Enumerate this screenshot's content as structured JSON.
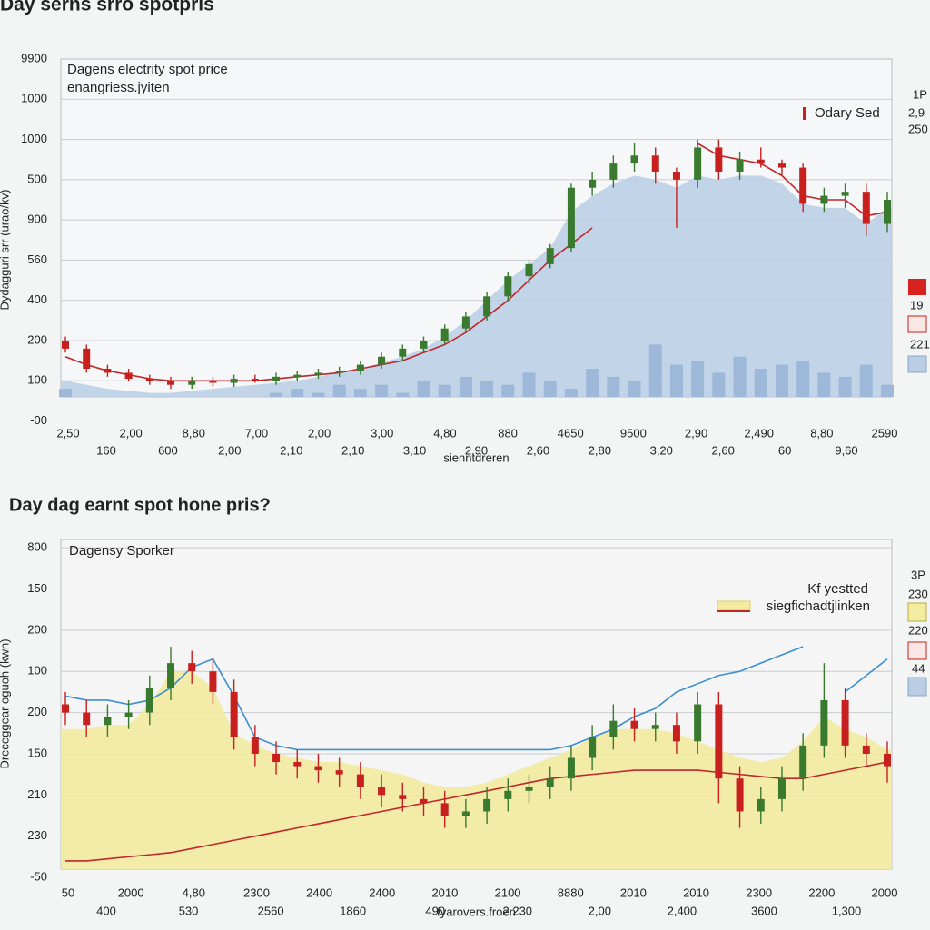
{
  "chart_data": [
    {
      "type": "candlestick",
      "title": "Day serns srro spotpris",
      "box_texts": [
        "Dagens electrity spot price",
        "enangriess.jyiten"
      ],
      "legend": [
        "Odary Sed"
      ],
      "side_labels": [
        "1P",
        "2,9",
        "250",
        "19",
        "221"
      ],
      "y_axis_title": "Dydagguri srr (urao/kv)",
      "y_labels": [
        "9900",
        "1000",
        "1000",
        "500",
        "900",
        "560",
        "400",
        "200",
        "100",
        "-00"
      ],
      "x_labels_row1": [
        "2,50",
        "2,00",
        "8,80",
        "7,00",
        "2,00",
        "3,00",
        "4,80",
        "880",
        "4650",
        "9500",
        "2,90",
        "2,490",
        "8,80",
        "2590"
      ],
      "x_labels_row2": [
        "160",
        "600",
        "2,00",
        "2,10",
        "2,10",
        "3,10",
        "2,90",
        "2,60",
        "2,80",
        "3,20",
        "2,60",
        "60",
        "9,60"
      ],
      "x_label": "sienntdreren",
      "ylim": [
        0.6,
        9.0
      ],
      "grid": true,
      "candles": {
        "up_color": "#3a7a2e",
        "down_color": "#c8201e",
        "open": [
          2.0,
          1.8,
          1.3,
          1.2,
          1.05,
          1.0,
          0.9,
          1.0,
          0.95,
          1.05,
          1.0,
          1.1,
          1.15,
          1.2,
          1.25,
          1.4,
          1.6,
          1.8,
          2.0,
          2.3,
          2.6,
          3.1,
          3.6,
          3.9,
          4.3,
          5.8,
          6.0,
          6.4,
          6.6,
          6.2,
          6.0,
          6.8,
          6.2,
          6.5,
          6.4,
          6.3,
          5.4,
          5.6,
          5.7,
          4.9
        ],
        "high": [
          2.1,
          1.9,
          1.4,
          1.3,
          1.15,
          1.1,
          1.1,
          1.1,
          1.15,
          1.15,
          1.2,
          1.25,
          1.3,
          1.35,
          1.5,
          1.7,
          1.9,
          2.1,
          2.4,
          2.7,
          3.2,
          3.7,
          4.0,
          4.4,
          5.9,
          6.2,
          6.6,
          6.9,
          6.8,
          6.3,
          7.0,
          7.0,
          6.7,
          6.8,
          6.5,
          6.4,
          5.8,
          5.9,
          5.9,
          5.7
        ],
        "low": [
          1.7,
          1.2,
          1.1,
          1.0,
          0.9,
          0.8,
          0.8,
          0.85,
          0.85,
          0.95,
          0.9,
          1.0,
          1.05,
          1.1,
          1.15,
          1.3,
          1.5,
          1.7,
          1.9,
          2.2,
          2.5,
          3.0,
          3.4,
          3.8,
          4.2,
          5.6,
          5.8,
          6.2,
          5.9,
          4.8,
          5.8,
          6.0,
          6.0,
          6.3,
          6.1,
          5.2,
          5.2,
          5.3,
          4.6,
          4.7
        ],
        "close": [
          1.8,
          1.3,
          1.2,
          1.05,
          1.0,
          0.9,
          1.0,
          0.95,
          1.05,
          1.0,
          1.1,
          1.15,
          1.2,
          1.25,
          1.4,
          1.6,
          1.8,
          2.0,
          2.3,
          2.6,
          3.1,
          3.6,
          3.9,
          4.3,
          5.8,
          6.0,
          6.4,
          6.6,
          6.2,
          6.0,
          6.8,
          6.2,
          6.5,
          6.4,
          6.3,
          5.4,
          5.6,
          5.7,
          4.9,
          5.5
        ]
      },
      "area": {
        "color": "#bccfe5",
        "values": [
          1.0,
          0.9,
          0.8,
          0.75,
          0.7,
          0.7,
          0.75,
          0.8,
          0.85,
          0.9,
          0.95,
          1.0,
          1.1,
          1.2,
          1.3,
          1.45,
          1.6,
          1.8,
          2.1,
          2.5,
          3.0,
          3.5,
          3.9,
          4.3,
          5.2,
          5.6,
          5.9,
          6.1,
          6.0,
          5.8,
          6.1,
          6.0,
          6.1,
          6.1,
          5.9,
          5.4,
          5.3,
          5.3,
          4.9,
          5.3
        ]
      },
      "volume": {
        "color": "#9db8d8",
        "values": [
          0.8,
          0.4,
          0.5,
          0.3,
          0.4,
          0.5,
          0.4,
          0.6,
          0.5,
          0.6,
          0.7,
          0.8,
          0.7,
          0.9,
          0.8,
          0.9,
          0.7,
          1.0,
          0.9,
          1.1,
          1.0,
          0.9,
          1.2,
          1.0,
          0.8,
          1.3,
          1.1,
          1.0,
          1.9,
          1.4,
          1.5,
          1.2,
          1.6,
          1.3,
          1.4,
          1.5,
          1.2,
          1.1,
          1.4,
          0.9
        ]
      },
      "lines": [
        {
          "color": "#c0262a",
          "values": [
            1.6,
            1.4,
            1.25,
            1.15,
            1.05,
            1.0,
            1.0,
            1.0,
            1.0,
            1.0,
            1.05,
            1.1,
            1.15,
            1.2,
            1.3,
            1.4,
            1.5,
            1.7,
            1.9,
            2.2,
            2.6,
            3.0,
            3.5,
            4.0,
            4.4,
            4.8,
            null,
            null,
            null,
            null,
            6.9,
            6.6,
            6.5,
            6.4,
            6.1,
            5.6,
            5.5,
            5.5,
            5.1,
            5.2
          ]
        }
      ]
    },
    {
      "type": "candlestick",
      "title": "Day dag earnt spot hone pris?",
      "box_texts": [
        "Dagensy Sporker"
      ],
      "legend": [
        "Kf yestted",
        "siegfichadtjlinken"
      ],
      "side_labels": [
        "3P",
        "230",
        "220",
        "44"
      ],
      "y_axis_title": "Dreceggear oguoh (kwn)",
      "y_labels": [
        "800",
        "150",
        "200",
        "100",
        "200",
        "150",
        "210",
        "230",
        "-50"
      ],
      "x_labels_row1": [
        "50",
        "2000",
        "4,80",
        "2300",
        "2400",
        "2400",
        "2010",
        "2100",
        "8880",
        "2010",
        "2010",
        "2300",
        "2200",
        "2000"
      ],
      "x_labels_row2": [
        "400",
        "530",
        "2560",
        "1860",
        "490",
        "2 230",
        "2,00",
        "2,400",
        "3600",
        "1,300"
      ],
      "x_label": "fyarovers.froen",
      "ylim": [
        0.2,
        8.2
      ],
      "grid": true,
      "candles": {
        "up_color": "#3a7a2e",
        "down_color": "#c8201e",
        "open": [
          4.2,
          4.0,
          3.7,
          3.9,
          4.0,
          4.6,
          5.2,
          5.0,
          4.5,
          3.4,
          3.0,
          2.8,
          2.7,
          2.6,
          2.5,
          2.2,
          2.0,
          1.9,
          1.8,
          1.5,
          1.6,
          1.9,
          2.1,
          2.2,
          2.4,
          2.9,
          3.4,
          3.8,
          3.6,
          3.7,
          3.3,
          4.2,
          2.4,
          1.6,
          1.9,
          2.4,
          3.2,
          4.3,
          3.2,
          3.0
        ],
        "high": [
          4.5,
          4.3,
          4.2,
          4.3,
          4.9,
          5.6,
          5.5,
          5.3,
          4.8,
          3.7,
          3.3,
          3.1,
          3.0,
          2.9,
          2.8,
          2.5,
          2.3,
          2.2,
          2.1,
          1.9,
          2.2,
          2.4,
          2.5,
          2.7,
          3.2,
          3.7,
          4.2,
          4.1,
          4.0,
          4.0,
          4.5,
          4.5,
          2.7,
          2.2,
          2.7,
          3.5,
          5.2,
          4.6,
          3.5,
          3.3
        ],
        "low": [
          3.7,
          3.4,
          3.4,
          3.6,
          3.7,
          4.3,
          4.7,
          4.2,
          3.1,
          2.7,
          2.5,
          2.4,
          2.3,
          2.2,
          1.9,
          1.7,
          1.6,
          1.5,
          1.2,
          1.2,
          1.3,
          1.6,
          1.8,
          1.9,
          2.1,
          2.6,
          3.1,
          3.3,
          3.3,
          3.0,
          3.0,
          1.8,
          1.2,
          1.3,
          1.6,
          2.1,
          2.9,
          2.9,
          2.7,
          2.3
        ],
        "close": [
          4.0,
          3.7,
          3.9,
          4.0,
          4.6,
          5.2,
          5.0,
          4.5,
          3.4,
          3.0,
          2.8,
          2.7,
          2.6,
          2.5,
          2.2,
          2.0,
          1.9,
          1.8,
          1.5,
          1.6,
          1.9,
          2.1,
          2.2,
          2.4,
          2.9,
          3.4,
          3.8,
          3.6,
          3.7,
          3.3,
          4.2,
          2.4,
          1.6,
          1.9,
          2.4,
          3.2,
          4.3,
          3.2,
          3.0,
          2.7
        ]
      },
      "area": {
        "color": "#f2eba0",
        "values": [
          3.6,
          3.6,
          3.7,
          3.7,
          4.2,
          5.0,
          5.0,
          4.6,
          3.5,
          3.2,
          3.0,
          2.9,
          2.8,
          2.8,
          2.7,
          2.6,
          2.5,
          2.3,
          2.2,
          2.2,
          2.3,
          2.5,
          2.7,
          2.9,
          3.1,
          3.4,
          3.6,
          3.6,
          3.6,
          3.5,
          3.3,
          3.1,
          2.9,
          2.8,
          2.9,
          3.3,
          3.9,
          3.6,
          3.4,
          3.1
        ]
      },
      "lines": [
        {
          "color": "#3b8fd0",
          "values": [
            4.4,
            4.3,
            4.3,
            4.2,
            4.3,
            4.6,
            5.1,
            5.3,
            4.4,
            3.4,
            3.2,
            3.1,
            3.1,
            3.1,
            3.1,
            3.1,
            3.1,
            3.1,
            3.1,
            3.1,
            3.1,
            3.1,
            3.1,
            3.1,
            3.2,
            3.4,
            3.6,
            3.9,
            4.1,
            4.5,
            4.7,
            4.9,
            5.0,
            5.2,
            5.4,
            5.6,
            null,
            4.5,
            4.9,
            5.3
          ]
        },
        {
          "color": "#c0262a",
          "values": [
            0.4,
            0.4,
            0.45,
            0.5,
            0.55,
            0.6,
            0.7,
            0.8,
            0.9,
            1.0,
            1.1,
            1.2,
            1.3,
            1.4,
            1.5,
            1.6,
            1.7,
            1.8,
            1.9,
            2.0,
            2.1,
            2.2,
            2.3,
            2.4,
            2.45,
            2.5,
            2.55,
            2.6,
            2.6,
            2.6,
            2.6,
            2.55,
            2.5,
            2.45,
            2.4,
            2.4,
            2.5,
            2.6,
            2.7,
            2.8
          ]
        }
      ]
    }
  ]
}
